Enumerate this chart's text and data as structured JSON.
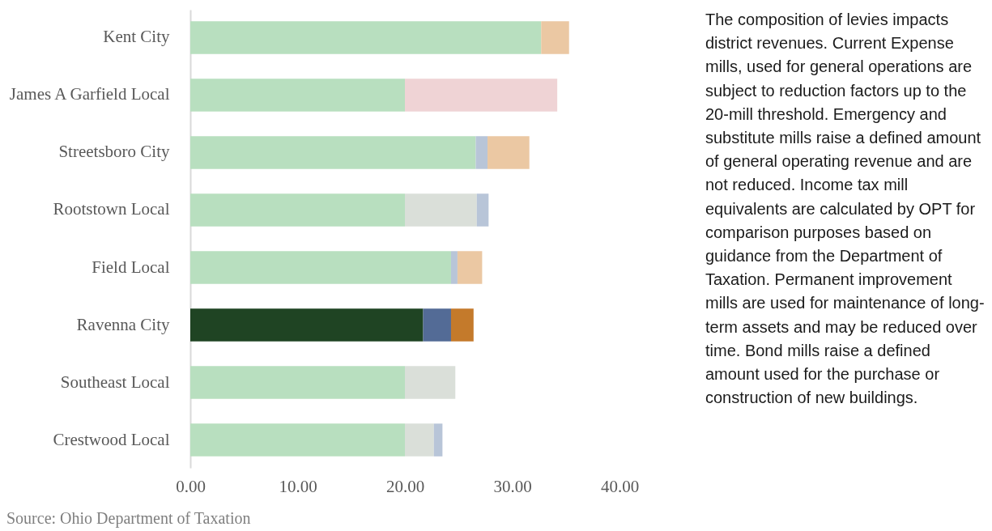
{
  "chart_data": {
    "type": "bar",
    "orientation": "horizontal",
    "stacked": true,
    "categories": [
      "Kent City",
      "James A Garfield Local",
      "Streetsboro City",
      "Rootstown Local",
      "Field Local",
      "Ravenna City",
      "Southeast Local",
      "Crestwood Local"
    ],
    "series": [
      {
        "colors": [
          "#b8dfbf",
          "#b8dfbf",
          "#b8dfbf",
          "#b8dfbf",
          "#b8dfbf",
          "#1f4423",
          "#b8dfbf",
          "#b8dfbf"
        ],
        "values": [
          32.7,
          20.0,
          26.6,
          20.0,
          24.3,
          21.7,
          20.0,
          20.0
        ]
      },
      {
        "color": "#dadfd9",
        "values": [
          null,
          null,
          null,
          6.7,
          null,
          null,
          4.7,
          2.7
        ]
      },
      {
        "color": "#efd3d5",
        "values": [
          null,
          14.2,
          null,
          null,
          null,
          null,
          null,
          null
        ]
      },
      {
        "colors": [
          null,
          null,
          "#b8c5d8",
          "#b8c5d8",
          "#b8c5d8",
          "#536b96",
          null,
          "#b8c5d8"
        ],
        "values": [
          null,
          null,
          1.1,
          1.1,
          0.6,
          2.6,
          null,
          0.8
        ]
      },
      {
        "colors": [
          "#ebc8a3",
          null,
          "#ebc8a3",
          null,
          "#ebc8a3",
          "#c47a2b",
          null,
          null
        ],
        "values": [
          2.6,
          null,
          3.9,
          null,
          2.3,
          2.1,
          null,
          null
        ]
      }
    ],
    "xlim": [
      0,
      40
    ],
    "xticks": [
      {
        "value": 0,
        "label": "0.00"
      },
      {
        "value": 10,
        "label": "10.00"
      },
      {
        "value": 20,
        "label": "20.00"
      },
      {
        "value": 30,
        "label": "30.00"
      },
      {
        "value": 40,
        "label": "40.00"
      }
    ],
    "annotations": [
      "The composition of levies impacts district revenues. Current Expense mills, used for general operations are subject to reduction factors up to the 20-mill threshold. Emergency and substitute mills raise a defined amount of general operating revenue and are not reduced. Income tax mill equivalents are calculated by OPT for comparison purposes based on guidance from the Department of Taxation. Permanent improvement mills are used for maintenance of long-term assets and may be reduced over time. Bond mills raise a defined amount used for the purchase or construction of new buildings.",
      "Source: Ohio Department of Taxation"
    ]
  }
}
